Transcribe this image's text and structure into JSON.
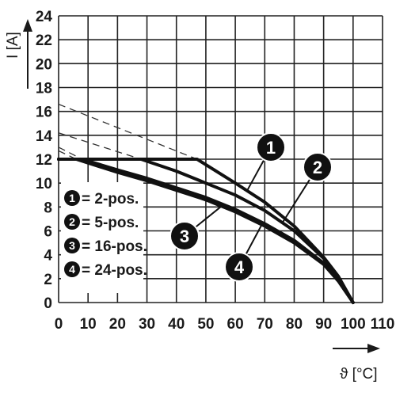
{
  "chart_data": {
    "type": "line",
    "xlabel": "ϑ [°C]",
    "ylabel": "I [A]",
    "xlim": [
      0,
      110
    ],
    "ylim": [
      0,
      24
    ],
    "x_ticks": [
      "0",
      "10",
      "20",
      "30",
      "40",
      "50",
      "60",
      "70",
      "80",
      "90",
      "100",
      "110"
    ],
    "y_ticks": [
      "0",
      "2",
      "4",
      "6",
      "8",
      "10",
      "12",
      "14",
      "16",
      "18",
      "20",
      "22",
      "24"
    ],
    "grid": true,
    "legend_position": "bottom-left",
    "series": [
      {
        "name": "2-pos.",
        "badge": "1",
        "x": [
          0,
          47,
          60,
          70,
          80,
          90,
          95,
          100
        ],
        "y": [
          12,
          12,
          10,
          8.4,
          6.4,
          3.8,
          2.2,
          0
        ],
        "extrapolation": {
          "x": [
            0,
            47
          ],
          "y": [
            16.6,
            12
          ]
        }
      },
      {
        "name": "5-pos.",
        "badge": "2",
        "x": [
          0,
          28,
          40,
          50,
          60,
          70,
          80,
          90,
          95,
          100
        ],
        "y": [
          12,
          12,
          11,
          10,
          9,
          7.7,
          6,
          3.7,
          2.1,
          0
        ],
        "extrapolation": {
          "x": [
            0,
            28
          ],
          "y": [
            14.2,
            12
          ]
        }
      },
      {
        "name": "16-pos.",
        "badge": "3",
        "x": [
          0,
          8,
          20,
          30,
          40,
          50,
          60,
          70,
          80,
          90,
          95,
          100
        ],
        "y": [
          12,
          12,
          11.1,
          10.4,
          9.6,
          8.8,
          7.8,
          6.6,
          5.2,
          3.3,
          1.9,
          0
        ],
        "extrapolation": {
          "x": [
            0,
            8
          ],
          "y": [
            13,
            12
          ]
        }
      },
      {
        "name": "24-pos.",
        "badge": "4",
        "x": [
          0,
          6,
          20,
          30,
          40,
          50,
          60,
          70,
          80,
          90,
          95,
          100
        ],
        "y": [
          12,
          12,
          10.9,
          10.2,
          9.4,
          8.6,
          7.6,
          6.4,
          5,
          3.2,
          1.8,
          0
        ],
        "extrapolation": {
          "x": [
            0,
            6
          ],
          "y": [
            12.7,
            12
          ]
        }
      }
    ],
    "legend_separator": "="
  }
}
